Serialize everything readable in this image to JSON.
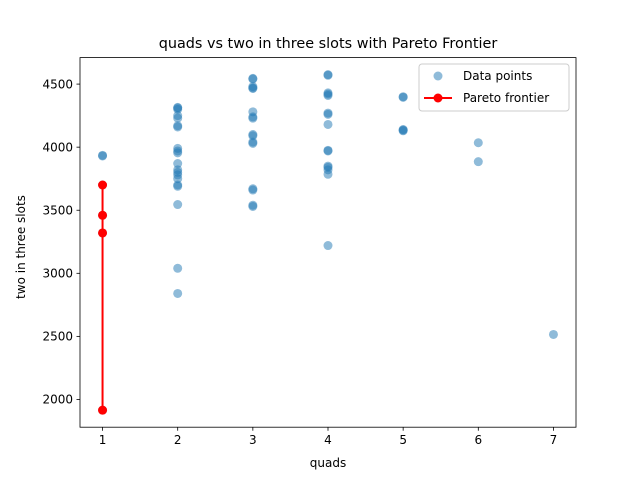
{
  "chart_data": {
    "type": "scatter",
    "title": "quads vs two in three slots with Pareto Frontier",
    "xlabel": "quads",
    "ylabel": "two in three slots",
    "xlim": [
      0.7,
      7.3
    ],
    "ylim": [
      1780,
      4710
    ],
    "xticks": [
      1,
      2,
      3,
      4,
      5,
      6,
      7
    ],
    "yticks": [
      2000,
      2500,
      3000,
      3500,
      4000,
      4500
    ],
    "legend_placement": "top-right",
    "grid": false,
    "colors": {
      "points": "#1f77b4",
      "frontier": "#ff0000"
    },
    "series": [
      {
        "name": "Data points",
        "kind": "scatter",
        "points": [
          [
            1,
            3935
          ],
          [
            1,
            3930
          ],
          [
            1,
            3700
          ],
          [
            1,
            3460
          ],
          [
            1,
            3320
          ],
          [
            1,
            1915
          ],
          [
            2,
            4315
          ],
          [
            2,
            4310
          ],
          [
            2,
            4300
          ],
          [
            2,
            4250
          ],
          [
            2,
            4230
          ],
          [
            2,
            4170
          ],
          [
            2,
            4160
          ],
          [
            2,
            3990
          ],
          [
            2,
            3970
          ],
          [
            2,
            3955
          ],
          [
            2,
            3870
          ],
          [
            2,
            3820
          ],
          [
            2,
            3800
          ],
          [
            2,
            3780
          ],
          [
            2,
            3750
          ],
          [
            2,
            3700
          ],
          [
            2,
            3690
          ],
          [
            2,
            3545
          ],
          [
            2,
            3040
          ],
          [
            2,
            2840
          ],
          [
            3,
            4545
          ],
          [
            3,
            4540
          ],
          [
            3,
            4480
          ],
          [
            3,
            4470
          ],
          [
            3,
            4465
          ],
          [
            3,
            4280
          ],
          [
            3,
            4240
          ],
          [
            3,
            4230
          ],
          [
            3,
            4100
          ],
          [
            3,
            4090
          ],
          [
            3,
            4040
          ],
          [
            3,
            4030
          ],
          [
            3,
            3670
          ],
          [
            3,
            3660
          ],
          [
            3,
            3540
          ],
          [
            3,
            3530
          ],
          [
            4,
            4575
          ],
          [
            4,
            4570
          ],
          [
            4,
            4430
          ],
          [
            4,
            4420
          ],
          [
            4,
            4410
          ],
          [
            4,
            4270
          ],
          [
            4,
            4260
          ],
          [
            4,
            4180
          ],
          [
            4,
            3975
          ],
          [
            4,
            3970
          ],
          [
            4,
            3850
          ],
          [
            4,
            3840
          ],
          [
            4,
            3820
          ],
          [
            4,
            3785
          ],
          [
            4,
            3220
          ],
          [
            5,
            4400
          ],
          [
            5,
            4395
          ],
          [
            5,
            4140
          ],
          [
            5,
            4135
          ],
          [
            5,
            4130
          ],
          [
            6,
            4035
          ],
          [
            6,
            3885
          ],
          [
            7,
            2515
          ]
        ]
      },
      {
        "name": "Pareto frontier",
        "kind": "line",
        "points": [
          [
            1,
            3700
          ],
          [
            1,
            3460
          ],
          [
            1,
            3320
          ],
          [
            1,
            1915
          ]
        ]
      }
    ]
  }
}
